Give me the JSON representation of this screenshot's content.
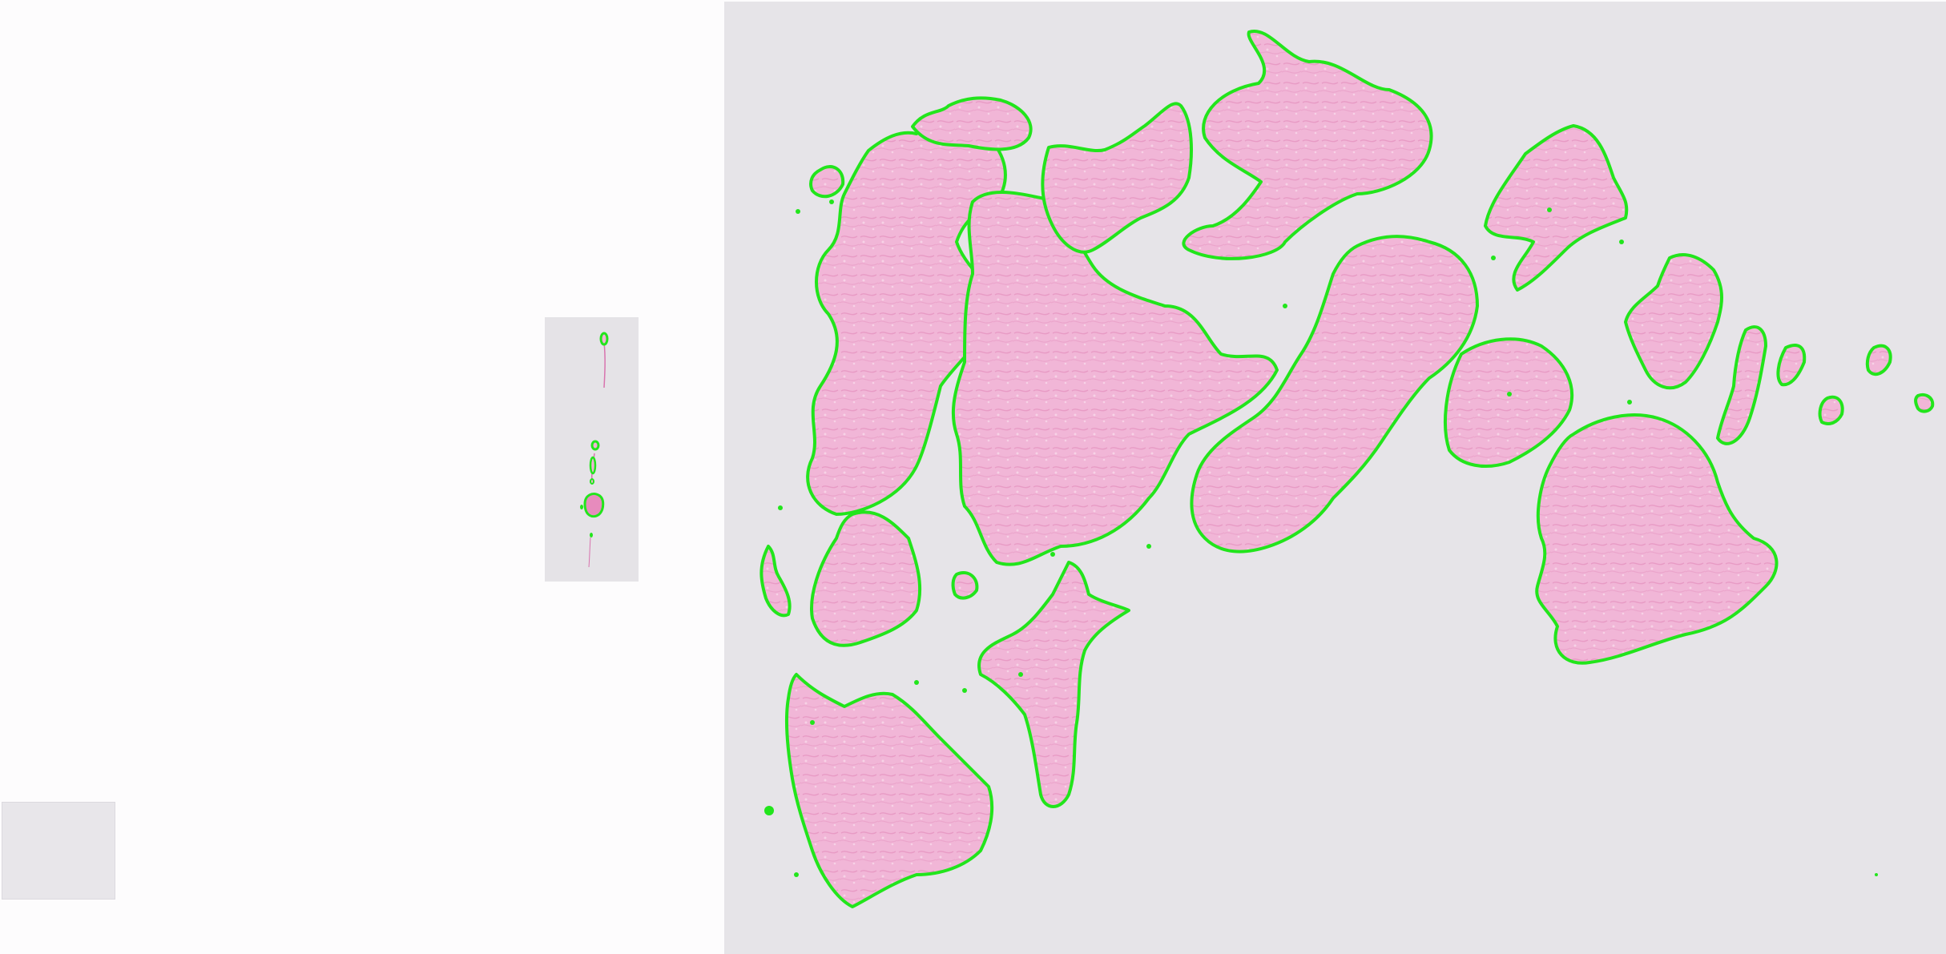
{
  "colors": {
    "background": "#fdfcfd",
    "slide_background": "#e6e4e8",
    "tissue_fill": "#f2b3d6",
    "tissue_dense": "#e78bbd",
    "outline": "#22e51c"
  },
  "icons": {
    "thumbnail": "slide-thumbnail-icon",
    "label": "slide-label-icon"
  }
}
